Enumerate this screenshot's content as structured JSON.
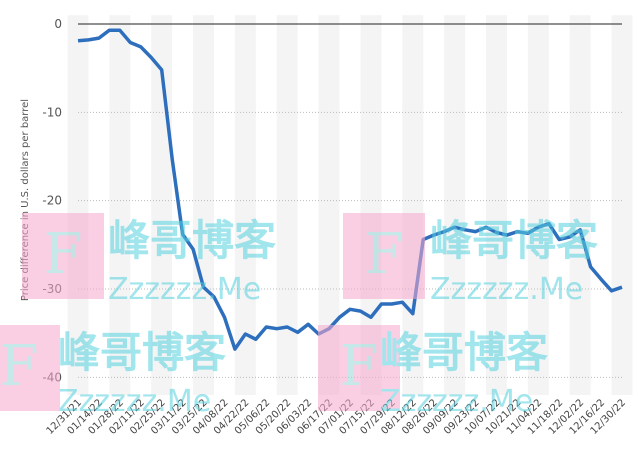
{
  "chart_data": {
    "type": "line",
    "y_label": "Price difference in U.S. dollars per barrel",
    "categories": [
      "12/31/21",
      null,
      "01/14/22",
      null,
      "01/28/22",
      null,
      "02/11/22",
      null,
      "02/25/22",
      null,
      "03/11/22",
      null,
      "03/25/22",
      null,
      "04/08/22",
      null,
      "04/22/22",
      null,
      "05/06/22",
      null,
      "05/20/22",
      null,
      "06/03/22",
      null,
      "06/17/22",
      null,
      "07/01/22",
      null,
      "07/15/22",
      null,
      "07/29/22",
      null,
      "08/12/22",
      null,
      "08/26/22",
      null,
      "09/09/22",
      null,
      "09/23/22",
      null,
      "10/07/22",
      null,
      "10/21/22",
      null,
      "11/04/22",
      null,
      "11/18/22",
      null,
      "12/02/22",
      null,
      "12/16/22",
      null,
      "12/30/22"
    ],
    "series": [
      {
        "name": "Price difference",
        "color": "#2e6fbd",
        "values": [
          -1.9,
          -1.8,
          -1.6,
          -0.7,
          -0.7,
          -2.1,
          -2.6,
          -3.8,
          -5.2,
          -15.3,
          -23.8,
          -25.5,
          -29.8,
          -30.9,
          -33.2,
          -36.8,
          -35.1,
          -35.7,
          -34.3,
          -34.5,
          -34.3,
          -34.9,
          -34.0,
          -35.1,
          -34.5,
          -33.2,
          -32.3,
          -32.5,
          -33.2,
          -31.7,
          -31.7,
          -31.5,
          -32.8,
          -24.4,
          -23.9,
          -23.5,
          -23.0,
          -23.3,
          -23.5,
          -23.0,
          -23.6,
          -23.9,
          -23.5,
          -23.7,
          -23.0,
          -22.6,
          -24.4,
          -24.1,
          -23.3,
          -27.5,
          -28.9,
          -30.2,
          -29.8
        ]
      }
    ],
    "ylim": [
      -42,
      1
    ],
    "yticks": [
      0,
      -10,
      -20,
      -30,
      -40
    ],
    "grid": true,
    "watermark": {
      "logo": "F",
      "name": "峰哥博客",
      "site": "Zzzzzz.Me"
    }
  }
}
